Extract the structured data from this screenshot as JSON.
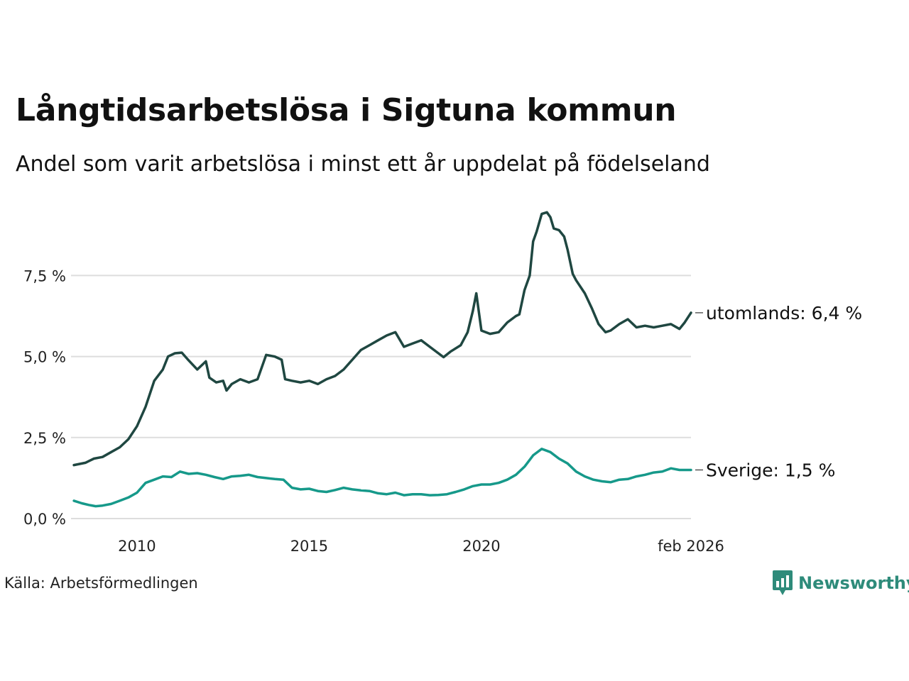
{
  "title": "Långtidsarbetslösa i Sigtuna kommun",
  "subtitle": "Andel som varit arbetslösa i minst ett år uppdelat på födelseland",
  "source": "Källa: Arbetsförmedlingen",
  "brand": {
    "name": "Newsworthy",
    "color": "#2e8b7a"
  },
  "chart_data": {
    "type": "line",
    "x_range": [
      2008.167,
      2026.083
    ],
    "ylim": [
      0,
      9.5
    ],
    "y_ticks": [
      {
        "value": 0,
        "label": "0,0 %"
      },
      {
        "value": 2.5,
        "label": "2,5 %"
      },
      {
        "value": 5,
        "label": "5,0 %"
      },
      {
        "value": 7.5,
        "label": "7,5 %"
      }
    ],
    "x_ticks": [
      {
        "value": 2010,
        "label": "2010"
      },
      {
        "value": 2015,
        "label": "2015"
      },
      {
        "value": 2020,
        "label": "2020"
      },
      {
        "value": 2026.083,
        "label": "feb 2026"
      }
    ],
    "series": [
      {
        "name": "utomlands",
        "end_label": "utomlands: 6,4 %",
        "color": "#1f4741",
        "points": [
          [
            2008.17,
            1.65
          ],
          [
            2008.5,
            1.72
          ],
          [
            2008.75,
            1.85
          ],
          [
            2009.0,
            1.9
          ],
          [
            2009.25,
            2.05
          ],
          [
            2009.5,
            2.2
          ],
          [
            2009.75,
            2.45
          ],
          [
            2010.0,
            2.85
          ],
          [
            2010.25,
            3.45
          ],
          [
            2010.5,
            4.25
          ],
          [
            2010.75,
            4.6
          ],
          [
            2010.9,
            5.0
          ],
          [
            2011.1,
            5.1
          ],
          [
            2011.3,
            5.12
          ],
          [
            2011.5,
            4.88
          ],
          [
            2011.75,
            4.6
          ],
          [
            2012.0,
            4.85
          ],
          [
            2012.1,
            4.35
          ],
          [
            2012.3,
            4.2
          ],
          [
            2012.5,
            4.25
          ],
          [
            2012.6,
            3.95
          ],
          [
            2012.75,
            4.15
          ],
          [
            2013.0,
            4.3
          ],
          [
            2013.25,
            4.2
          ],
          [
            2013.5,
            4.3
          ],
          [
            2013.75,
            5.05
          ],
          [
            2014.0,
            5.0
          ],
          [
            2014.2,
            4.9
          ],
          [
            2014.3,
            4.3
          ],
          [
            2014.5,
            4.25
          ],
          [
            2014.75,
            4.2
          ],
          [
            2015.0,
            4.25
          ],
          [
            2015.25,
            4.15
          ],
          [
            2015.5,
            4.3
          ],
          [
            2015.75,
            4.4
          ],
          [
            2016.0,
            4.6
          ],
          [
            2016.25,
            4.9
          ],
          [
            2016.5,
            5.2
          ],
          [
            2016.75,
            5.35
          ],
          [
            2017.0,
            5.5
          ],
          [
            2017.25,
            5.65
          ],
          [
            2017.5,
            5.75
          ],
          [
            2017.75,
            5.3
          ],
          [
            2018.0,
            5.4
          ],
          [
            2018.25,
            5.5
          ],
          [
            2018.5,
            5.3
          ],
          [
            2018.75,
            5.1
          ],
          [
            2018.9,
            4.98
          ],
          [
            2019.1,
            5.15
          ],
          [
            2019.4,
            5.35
          ],
          [
            2019.6,
            5.75
          ],
          [
            2019.75,
            6.4
          ],
          [
            2019.85,
            6.95
          ],
          [
            2020.0,
            5.8
          ],
          [
            2020.25,
            5.7
          ],
          [
            2020.5,
            5.75
          ],
          [
            2020.75,
            6.05
          ],
          [
            2021.0,
            6.25
          ],
          [
            2021.1,
            6.3
          ],
          [
            2021.25,
            7.05
          ],
          [
            2021.4,
            7.5
          ],
          [
            2021.5,
            8.55
          ],
          [
            2021.6,
            8.85
          ],
          [
            2021.75,
            9.4
          ],
          [
            2021.9,
            9.45
          ],
          [
            2022.0,
            9.3
          ],
          [
            2022.1,
            8.95
          ],
          [
            2022.25,
            8.9
          ],
          [
            2022.4,
            8.7
          ],
          [
            2022.5,
            8.3
          ],
          [
            2022.65,
            7.55
          ],
          [
            2022.75,
            7.35
          ],
          [
            2023.0,
            6.95
          ],
          [
            2023.2,
            6.5
          ],
          [
            2023.4,
            6.0
          ],
          [
            2023.6,
            5.75
          ],
          [
            2023.75,
            5.8
          ],
          [
            2024.0,
            6.0
          ],
          [
            2024.25,
            6.15
          ],
          [
            2024.5,
            5.9
          ],
          [
            2024.75,
            5.95
          ],
          [
            2025.0,
            5.9
          ],
          [
            2025.25,
            5.95
          ],
          [
            2025.5,
            6.0
          ],
          [
            2025.75,
            5.85
          ],
          [
            2025.9,
            6.05
          ],
          [
            2026.083,
            6.35
          ]
        ]
      },
      {
        "name": "Sverige",
        "end_label": "Sverige: 1,5 %",
        "color": "#16998a",
        "points": [
          [
            2008.17,
            0.55
          ],
          [
            2008.4,
            0.47
          ],
          [
            2008.6,
            0.42
          ],
          [
            2008.8,
            0.38
          ],
          [
            2009.0,
            0.4
          ],
          [
            2009.25,
            0.45
          ],
          [
            2009.5,
            0.55
          ],
          [
            2009.75,
            0.65
          ],
          [
            2010.0,
            0.8
          ],
          [
            2010.25,
            1.1
          ],
          [
            2010.5,
            1.2
          ],
          [
            2010.75,
            1.3
          ],
          [
            2011.0,
            1.28
          ],
          [
            2011.25,
            1.45
          ],
          [
            2011.5,
            1.38
          ],
          [
            2011.75,
            1.4
          ],
          [
            2012.0,
            1.35
          ],
          [
            2012.25,
            1.28
          ],
          [
            2012.5,
            1.22
          ],
          [
            2012.75,
            1.3
          ],
          [
            2013.0,
            1.32
          ],
          [
            2013.25,
            1.35
          ],
          [
            2013.5,
            1.28
          ],
          [
            2013.75,
            1.25
          ],
          [
            2014.0,
            1.22
          ],
          [
            2014.25,
            1.2
          ],
          [
            2014.5,
            0.95
          ],
          [
            2014.75,
            0.9
          ],
          [
            2015.0,
            0.92
          ],
          [
            2015.25,
            0.85
          ],
          [
            2015.5,
            0.82
          ],
          [
            2015.75,
            0.88
          ],
          [
            2016.0,
            0.95
          ],
          [
            2016.25,
            0.9
          ],
          [
            2016.5,
            0.87
          ],
          [
            2016.75,
            0.85
          ],
          [
            2017.0,
            0.78
          ],
          [
            2017.25,
            0.75
          ],
          [
            2017.5,
            0.8
          ],
          [
            2017.75,
            0.72
          ],
          [
            2018.0,
            0.75
          ],
          [
            2018.25,
            0.75
          ],
          [
            2018.5,
            0.72
          ],
          [
            2018.75,
            0.73
          ],
          [
            2019.0,
            0.75
          ],
          [
            2019.25,
            0.82
          ],
          [
            2019.5,
            0.9
          ],
          [
            2019.75,
            1.0
          ],
          [
            2020.0,
            1.05
          ],
          [
            2020.25,
            1.05
          ],
          [
            2020.5,
            1.1
          ],
          [
            2020.75,
            1.2
          ],
          [
            2021.0,
            1.35
          ],
          [
            2021.25,
            1.6
          ],
          [
            2021.5,
            1.95
          ],
          [
            2021.75,
            2.15
          ],
          [
            2022.0,
            2.05
          ],
          [
            2022.25,
            1.85
          ],
          [
            2022.5,
            1.7
          ],
          [
            2022.75,
            1.45
          ],
          [
            2023.0,
            1.3
          ],
          [
            2023.25,
            1.2
          ],
          [
            2023.5,
            1.15
          ],
          [
            2023.75,
            1.12
          ],
          [
            2024.0,
            1.2
          ],
          [
            2024.25,
            1.22
          ],
          [
            2024.5,
            1.3
          ],
          [
            2024.75,
            1.35
          ],
          [
            2025.0,
            1.42
          ],
          [
            2025.25,
            1.45
          ],
          [
            2025.5,
            1.55
          ],
          [
            2025.75,
            1.5
          ],
          [
            2026.083,
            1.5
          ]
        ]
      }
    ]
  }
}
